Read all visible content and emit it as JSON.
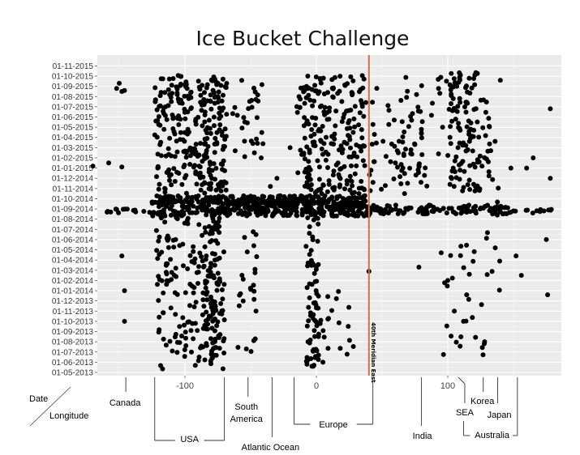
{
  "chart_data": {
    "type": "scatter",
    "title": "Ice Bucket Challenge",
    "xlabel": "Longitude",
    "ylabel": "Date",
    "x_ticks": [
      -100,
      0,
      100
    ],
    "xlim": [
      -170,
      185
    ],
    "y_ticks": [
      "01-05-2013",
      "01-06-2013",
      "01-07-2013",
      "01-08-2013",
      "01-09-2013",
      "01-10-2013",
      "01-11-2013",
      "01-12-2013",
      "01-01-2014",
      "01-02-2014",
      "01-03-2014",
      "01-04-2014",
      "01-05-2014",
      "01-06-2014",
      "01-07-2014",
      "01-08-2014",
      "01-09-2014",
      "01-10-2014",
      "01-11-2014",
      "01-12-2014",
      "01-01-2015",
      "01-02-2015",
      "01-03-2015",
      "01-04-2015",
      "01-05-2015",
      "01-06-2015",
      "01-07-2015",
      "01-08-2015",
      "01-09-2015",
      "01-10-2015",
      "01-11-2015"
    ],
    "ylim": [
      "2013-05",
      "2015-11"
    ],
    "background": "#ebebeb",
    "grid": true,
    "point_color": "#000000",
    "reference_line": {
      "x": 40,
      "label": "40th Meridian East",
      "color": "#d2704a"
    },
    "regions": [
      {
        "label": "Canada",
        "lon": -145
      },
      {
        "label": "USA",
        "lon": [
          -123,
          -70
        ]
      },
      {
        "label": "South America",
        "lon": -52
      },
      {
        "label": "Atlantic Ocean",
        "lon": [
          -30,
          -28
        ]
      },
      {
        "label": "Europe",
        "lon": [
          -17,
          43
        ]
      },
      {
        "label": "India",
        "lon": 80
      },
      {
        "label": "SEA",
        "lon": 108
      },
      {
        "label": "Korea",
        "lon": 127
      },
      {
        "label": "Australia",
        "lon": [
          112,
          153
        ]
      },
      {
        "label": "Japan",
        "lon": 138
      }
    ]
  }
}
